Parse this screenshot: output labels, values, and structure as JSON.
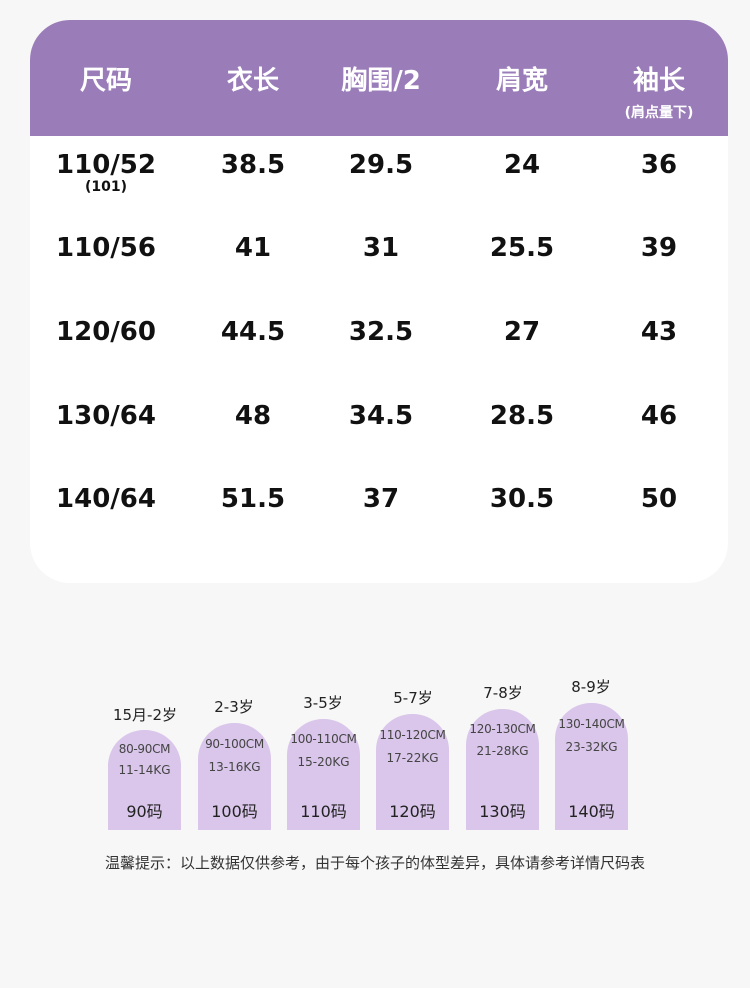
{
  "table": {
    "headers": [
      {
        "label": "尺码",
        "sub": ""
      },
      {
        "label": "衣长",
        "sub": ""
      },
      {
        "label": "胸围/2",
        "sub": ""
      },
      {
        "label": "肩宽",
        "sub": ""
      },
      {
        "label": "袖长",
        "sub": "(肩点量下)"
      }
    ],
    "rows": [
      [
        "110/52",
        "38.5",
        "29.5",
        "24",
        "36"
      ],
      [
        "110/56",
        "41",
        "31",
        "25.5",
        "39"
      ],
      [
        "120/60",
        "44.5",
        "32.5",
        "27",
        "43"
      ],
      [
        "130/64",
        "48",
        "34.5",
        "28.5",
        "46"
      ],
      [
        "140/64",
        "51.5",
        "37",
        "30.5",
        "50"
      ]
    ],
    "row0_note": "(101)"
  },
  "size_guide": [
    {
      "age": "15月-2岁",
      "height": "80-90CM",
      "weight": "11-14KG",
      "size": "90码"
    },
    {
      "age": "2-3岁",
      "height": "90-100CM",
      "weight": "13-16KG",
      "size": "100码"
    },
    {
      "age": "3-5岁",
      "height": "100-110CM",
      "weight": "15-20KG",
      "size": "110码"
    },
    {
      "age": "5-7岁",
      "height": "110-120CM",
      "weight": "17-22KG",
      "size": "120码"
    },
    {
      "age": "7-8岁",
      "height": "120-130CM",
      "weight": "21-28KG",
      "size": "130码"
    },
    {
      "age": "8-9岁",
      "height": "130-140CM",
      "weight": "23-32KG",
      "size": "140码"
    }
  ],
  "tip": "温馨提示：以上数据仅供参考，由于每个孩子的体型差异，具体请参考详情尺码表",
  "colors": {
    "header_bg": "#9a7cb9",
    "pill_bg": "#d9c6ea",
    "card_bg": "#ffffff",
    "page_bg": "#f7f7f7"
  }
}
